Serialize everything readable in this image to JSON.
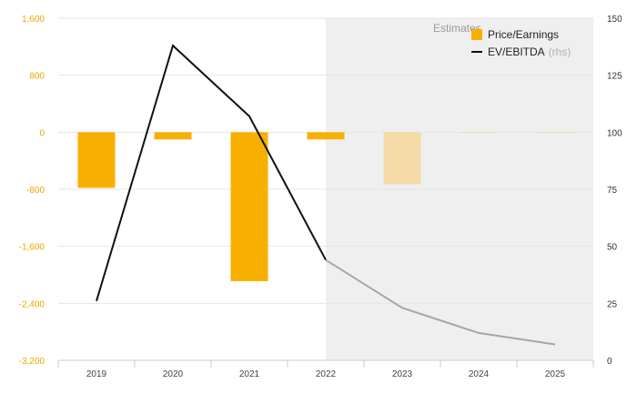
{
  "colors": {
    "bar": "#f8b000",
    "bar_estimate": "#f4dba7",
    "line": "#111111",
    "line_estimate": "#a6a6a6",
    "left_axis_text": "#f0a500",
    "right_axis_text": "#333333",
    "estimate_band": "#efefef",
    "grid": "#e6e6e6"
  },
  "chart_data": {
    "type": "bar",
    "categories": [
      "2019",
      "2020",
      "2021",
      "2022",
      "2023",
      "2024",
      "2025"
    ],
    "estimate_start": "2022",
    "estimate_label": "Estimates",
    "grid": true,
    "legend_position": "top-right",
    "y_left": {
      "ticks": [
        1600,
        800,
        0,
        -800,
        -1600,
        -2400,
        -3200
      ],
      "tick_labels": [
        "1,600",
        "800",
        "0",
        "-800",
        "-1,600",
        "-2,400",
        "-3,200"
      ],
      "range": [
        -3200,
        1600
      ]
    },
    "y_right": {
      "ticks": [
        150,
        125,
        100,
        75,
        50,
        25,
        0
      ],
      "tick_labels": [
        "150",
        "125",
        "100",
        "75",
        "50",
        "25",
        "0"
      ],
      "range": [
        0,
        150
      ]
    },
    "series": [
      {
        "name": "Price/Earnings",
        "type": "bar",
        "axis": "left",
        "values": [
          -780,
          -100,
          -2090,
          -100,
          -730,
          5,
          5
        ]
      },
      {
        "name": "EV/EBITDA",
        "name_note": "(rhs)",
        "type": "line",
        "axis": "right",
        "values": [
          26,
          138,
          107,
          44,
          23,
          12,
          7
        ]
      }
    ]
  }
}
